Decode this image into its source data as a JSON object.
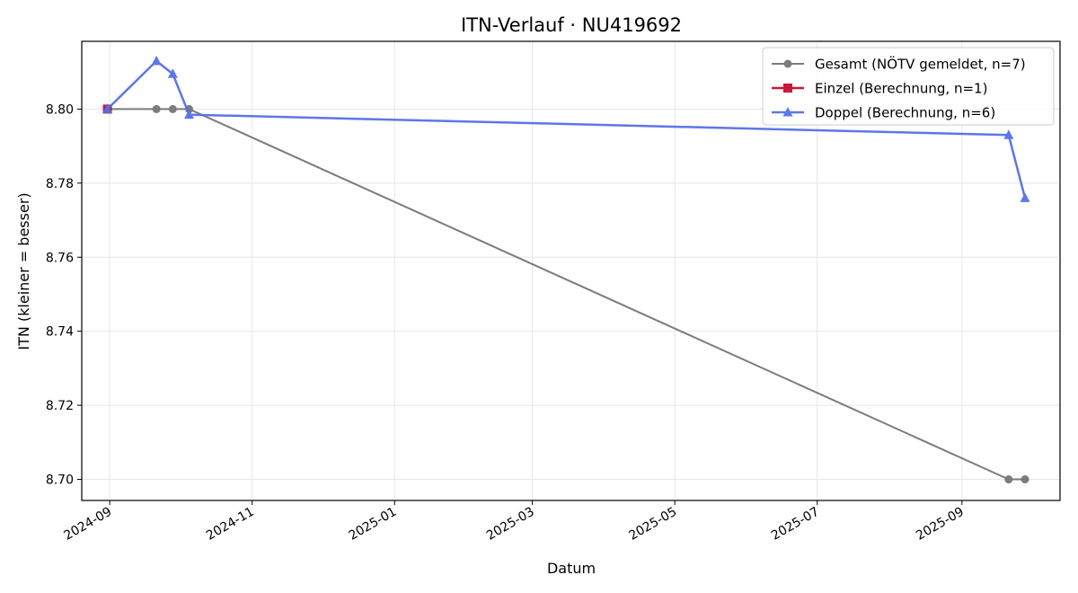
{
  "chart_data": {
    "type": "line",
    "title": "ITN-Verlauf · NU419692",
    "xlabel": "Datum",
    "ylabel": "ITN  (kleiner = besser)",
    "xlim": [
      "2024-08-20",
      "2025-10-13"
    ],
    "ylim": [
      8.6943,
      8.8183
    ],
    "x_ticks": [
      "2024-09",
      "2024-11",
      "2025-01",
      "2025-03",
      "2025-05",
      "2025-07",
      "2025-09"
    ],
    "y_ticks": [
      "8.70",
      "8.72",
      "8.74",
      "8.76",
      "8.78",
      "8.80"
    ],
    "grid": true,
    "legend_position": "top-right",
    "series": [
      {
        "name": "Gesamt (NÖTV gemeldet, n=7)",
        "color": "#6e6e6e",
        "marker": "circle",
        "points": [
          {
            "x": "2024-08-31",
            "y": 8.8
          },
          {
            "x": "2024-09-21",
            "y": 8.8
          },
          {
            "x": "2024-09-28",
            "y": 8.8
          },
          {
            "x": "2024-10-05",
            "y": 8.8
          },
          {
            "x": "2025-09-21",
            "y": 8.7
          },
          {
            "x": "2025-09-28",
            "y": 8.7
          }
        ]
      },
      {
        "name": "Einzel (Berechnung, n=1)",
        "color": "#c8173a",
        "marker": "square",
        "points": [
          {
            "x": "2024-08-31",
            "y": 8.8
          }
        ]
      },
      {
        "name": "Doppel (Berechnung, n=6)",
        "color": "#5470e8",
        "marker": "triangle",
        "points": [
          {
            "x": "2024-08-31",
            "y": 8.8
          },
          {
            "x": "2024-09-21",
            "y": 8.813
          },
          {
            "x": "2024-09-28",
            "y": 8.8095
          },
          {
            "x": "2024-10-05",
            "y": 8.7985
          },
          {
            "x": "2025-09-21",
            "y": 8.793
          },
          {
            "x": "2025-09-28",
            "y": 8.776
          }
        ]
      }
    ]
  }
}
